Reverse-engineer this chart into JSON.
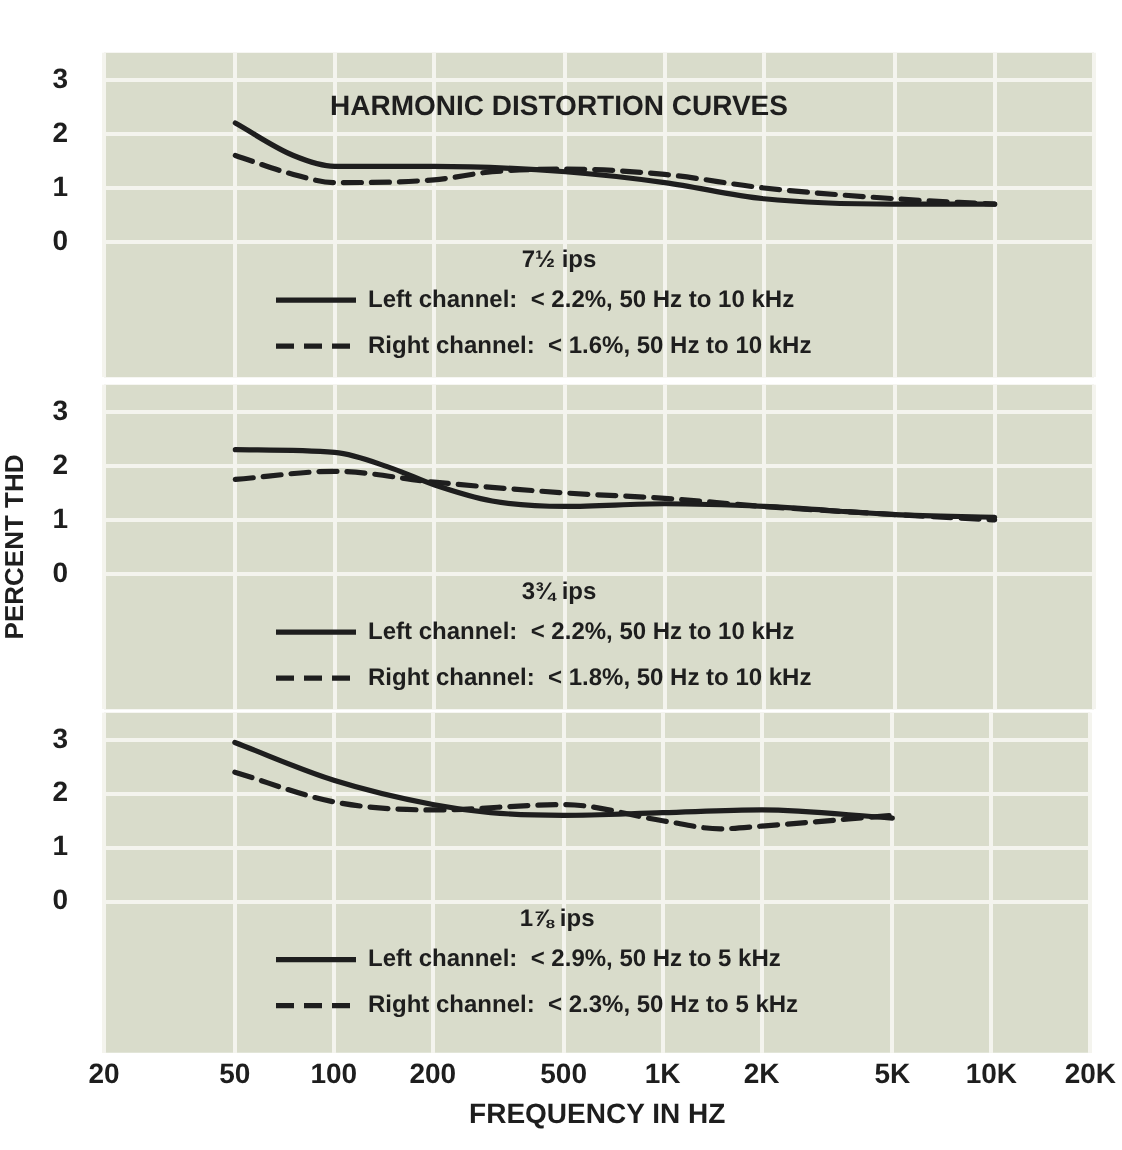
{
  "chart_data": [
    {
      "type": "line",
      "title": "HARMONIC DISTORTION CURVES",
      "subtitle": "7½ ips",
      "log": "x",
      "grid": true,
      "legend": "bottom",
      "tick_labels": "y",
      "xlim": [
        20,
        20000
      ],
      "ylim": [
        -2.5,
        3.5
      ],
      "yticks": [
        0,
        1,
        2,
        3
      ],
      "xticks": [
        20,
        50,
        100,
        200,
        500,
        1000,
        2000,
        5000,
        10000,
        20000
      ],
      "series": [
        {
          "name": "Left channel:  < 2.2%, 50 Hz to 10 kHz",
          "color": "#1e1e1e",
          "line_style": "solid",
          "x": [
            50,
            75,
            100,
            200,
            500,
            1000,
            2000,
            5000,
            10000
          ],
          "values": [
            2.2,
            1.6,
            1.4,
            1.4,
            1.3,
            1.1,
            0.8,
            0.7,
            0.7
          ]
        },
        {
          "name": "Right channel:  < 1.6%, 50 Hz to 10 kHz",
          "color": "#1e1e1e",
          "line_style": "dashed",
          "x": [
            50,
            75,
            100,
            200,
            300,
            500,
            1000,
            2000,
            5000,
            10000
          ],
          "values": [
            1.6,
            1.25,
            1.1,
            1.15,
            1.3,
            1.35,
            1.25,
            1.0,
            0.8,
            0.7
          ]
        }
      ]
    },
    {
      "type": "line",
      "subtitle": "3¾ ips",
      "ylabel": "PERCENT THD",
      "log": "x",
      "grid": true,
      "legend": "bottom",
      "tick_labels": "y",
      "xlim": [
        20,
        20000
      ],
      "ylim": [
        -2.5,
        3.5
      ],
      "yticks": [
        0,
        1,
        2,
        3
      ],
      "xticks": [
        20,
        50,
        100,
        200,
        500,
        1000,
        2000,
        5000,
        10000,
        20000
      ],
      "series": [
        {
          "name": "Left channel:  < 2.2%, 50 Hz to 10 kHz",
          "color": "#1e1e1e",
          "line_style": "solid",
          "x": [
            50,
            100,
            150,
            200,
            300,
            500,
            1000,
            2000,
            5000,
            10000
          ],
          "values": [
            2.3,
            2.25,
            1.95,
            1.65,
            1.35,
            1.25,
            1.3,
            1.25,
            1.1,
            1.05
          ]
        },
        {
          "name": "Right channel:  < 1.8%, 50 Hz to 10 kHz",
          "color": "#1e1e1e",
          "line_style": "dashed",
          "x": [
            50,
            100,
            200,
            500,
            1000,
            2000,
            5000,
            10000
          ],
          "values": [
            1.75,
            1.9,
            1.7,
            1.5,
            1.4,
            1.25,
            1.1,
            1.0
          ]
        }
      ]
    },
    {
      "type": "line",
      "subtitle": "1⅞ ips",
      "xlabel": "FREQUENCY IN HZ",
      "log": "x",
      "grid": true,
      "legend": "bottom",
      "xlim": [
        20,
        20000
      ],
      "ylim": [
        -2.8,
        3.5
      ],
      "yticks": [
        0,
        1,
        2,
        3
      ],
      "xticks": [
        20,
        50,
        100,
        200,
        500,
        {
          "value": 1000,
          "label": "1K"
        },
        {
          "value": 2000,
          "label": "2K"
        },
        {
          "value": 5000,
          "label": "5K"
        },
        {
          "value": 10000,
          "label": "10K"
        },
        {
          "value": 20000,
          "label": "20K"
        }
      ],
      "series": [
        {
          "name": "Left channel:  < 2.9%, 50 Hz to 5 kHz",
          "color": "#1e1e1e",
          "line_style": "solid",
          "x": [
            50,
            100,
            200,
            300,
            500,
            1000,
            2000,
            5000
          ],
          "values": [
            2.95,
            2.25,
            1.8,
            1.65,
            1.6,
            1.65,
            1.7,
            1.55
          ]
        },
        {
          "name": "Right channel:  < 2.3%, 50 Hz to 5 kHz",
          "color": "#1e1e1e",
          "line_style": "dashed",
          "x": [
            50,
            100,
            200,
            500,
            1000,
            1500,
            2000,
            5000
          ],
          "values": [
            2.4,
            1.85,
            1.7,
            1.8,
            1.5,
            1.35,
            1.4,
            1.6
          ]
        }
      ]
    }
  ]
}
